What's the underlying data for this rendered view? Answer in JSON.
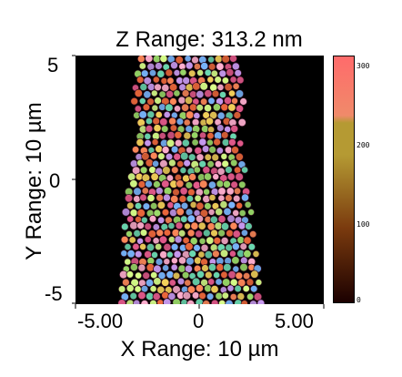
{
  "title": "Z Range:  313.2 nm",
  "xlabel": "X Range: 10 µm",
  "ylabel": "Y Range: 10 µm",
  "x_ticks": [
    "-5.00",
    "0",
    "5.00"
  ],
  "y_ticks": [
    "5",
    "0",
    "-5"
  ],
  "colorbar": {
    "ticks": [
      "300",
      "200",
      "100",
      "0"
    ],
    "colors": [
      "#ff6b6b",
      "#f08a6a",
      "#b59a33",
      "#7a3a0e",
      "#1b0000"
    ]
  },
  "image": {
    "background": "#000000",
    "particle_colors": [
      "#e45a8c",
      "#9bdc6a",
      "#f3d15a",
      "#7ab8ff",
      "#f06a3c",
      "#6ad8b0",
      "#c89af0",
      "#ffb0d0",
      "#d8ff8a",
      "#ff8a5a"
    ]
  }
}
